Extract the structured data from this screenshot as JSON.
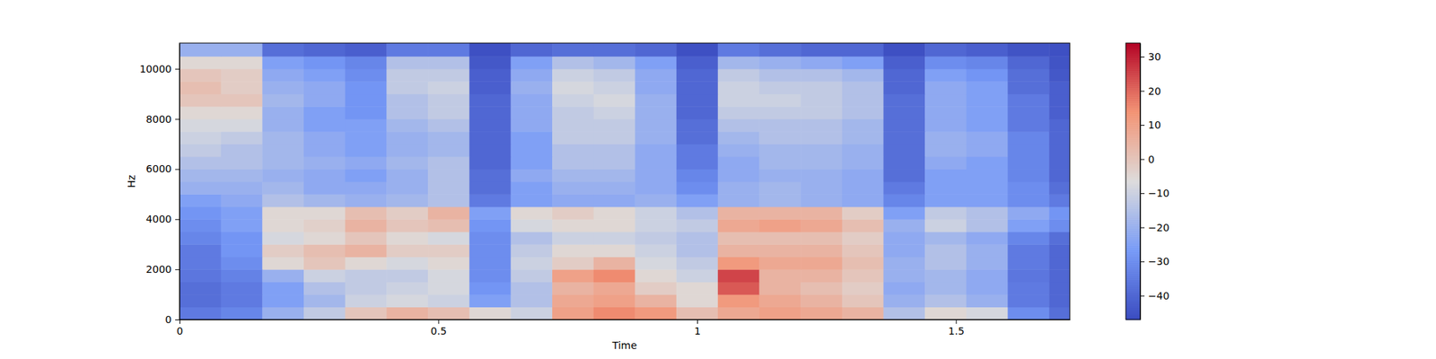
{
  "chart_data": {
    "type": "heatmap",
    "xlabel": "Time",
    "ylabel": "Hz",
    "xlim": [
      0,
      1.72
    ],
    "ylim": [
      0,
      11025
    ],
    "xticks": [
      0,
      0.5,
      1,
      1.5
    ],
    "yticks": [
      0,
      2000,
      4000,
      6000,
      8000,
      10000
    ],
    "x_bins": [
      0,
      0.08,
      0.16,
      0.24,
      0.32,
      0.4,
      0.48,
      0.56,
      0.64,
      0.72,
      0.8,
      0.88,
      0.96,
      1.04,
      1.12,
      1.2,
      1.28,
      1.36,
      1.44,
      1.52,
      1.6,
      1.68,
      1.72
    ],
    "y_bins": [
      0,
      500,
      1000,
      1500,
      2000,
      2500,
      3000,
      3500,
      4000,
      4500,
      5000,
      5500,
      6000,
      6500,
      7000,
      7500,
      8000,
      8500,
      9000,
      9500,
      10000,
      10500,
      11025
    ],
    "cells": [
      [
        -35,
        -32,
        -20,
        -12,
        0,
        5,
        2,
        -5,
        -10,
        10,
        15,
        12,
        2,
        8,
        10,
        8,
        5,
        -15,
        -5,
        -8,
        -30,
        -38
      ],
      [
        -38,
        -35,
        -25,
        -18,
        -10,
        -8,
        -10,
        -25,
        -15,
        8,
        10,
        5,
        -5,
        12,
        8,
        5,
        0,
        -20,
        -15,
        -20,
        -35,
        -40
      ],
      [
        -38,
        -35,
        -25,
        -15,
        -12,
        -10,
        -8,
        -28,
        -15,
        5,
        8,
        -2,
        -5,
        22,
        5,
        2,
        -2,
        -22,
        -18,
        -22,
        -35,
        -40
      ],
      [
        -36,
        -33,
        -20,
        -10,
        -12,
        -12,
        -8,
        -30,
        -12,
        10,
        15,
        -5,
        -10,
        25,
        5,
        5,
        0,
        -20,
        -18,
        -22,
        -36,
        -40
      ],
      [
        -35,
        -30,
        -5,
        0,
        -5,
        -8,
        -5,
        -30,
        -10,
        -2,
        5,
        -8,
        -12,
        12,
        8,
        8,
        2,
        -20,
        -15,
        -20,
        -35,
        -40
      ],
      [
        -35,
        -28,
        -2,
        2,
        5,
        -2,
        -2,
        -30,
        -12,
        -5,
        -5,
        -10,
        -15,
        5,
        5,
        5,
        0,
        -22,
        -15,
        -20,
        -35,
        -40
      ],
      [
        -32,
        -28,
        -8,
        -5,
        0,
        -5,
        -8,
        -30,
        -15,
        -10,
        -10,
        -12,
        -15,
        2,
        2,
        2,
        -2,
        -22,
        -18,
        -22,
        -32,
        -38
      ],
      [
        -30,
        -25,
        -5,
        -3,
        5,
        0,
        2,
        -28,
        -8,
        -5,
        -5,
        -10,
        -12,
        8,
        10,
        8,
        2,
        -20,
        -10,
        -15,
        -25,
        -30
      ],
      [
        -28,
        -25,
        -5,
        -5,
        2,
        -2,
        5,
        -25,
        -5,
        -2,
        -5,
        -10,
        -15,
        5,
        5,
        5,
        -2,
        -25,
        -12,
        -15,
        -22,
        -28
      ],
      [
        -25,
        -22,
        -15,
        -18,
        -20,
        -18,
        -15,
        -35,
        -25,
        -22,
        -22,
        -20,
        -25,
        -20,
        -18,
        -20,
        -22,
        -32,
        -25,
        -25,
        -30,
        -35
      ],
      [
        -20,
        -20,
        -18,
        -22,
        -22,
        -20,
        -15,
        -38,
        -25,
        -20,
        -20,
        -22,
        -30,
        -20,
        -18,
        -20,
        -22,
        -35,
        -25,
        -25,
        -30,
        -38
      ],
      [
        -18,
        -18,
        -20,
        -22,
        -25,
        -20,
        -15,
        -38,
        -22,
        -18,
        -18,
        -22,
        -32,
        -22,
        -20,
        -20,
        -22,
        -38,
        -25,
        -25,
        -32,
        -40
      ],
      [
        -15,
        -15,
        -18,
        -20,
        -22,
        -18,
        -15,
        -40,
        -25,
        -15,
        -15,
        -22,
        -35,
        -22,
        -18,
        -18,
        -20,
        -38,
        -22,
        -25,
        -32,
        -40
      ],
      [
        -12,
        -15,
        -18,
        -22,
        -25,
        -20,
        -18,
        -40,
        -25,
        -15,
        -15,
        -22,
        -35,
        -20,
        -18,
        -18,
        -20,
        -38,
        -20,
        -22,
        -32,
        -40
      ],
      [
        -10,
        -12,
        -18,
        -22,
        -25,
        -20,
        -18,
        -40,
        -25,
        -12,
        -12,
        -20,
        -38,
        -18,
        -15,
        -15,
        -18,
        -38,
        -20,
        -22,
        -32,
        -40
      ],
      [
        -8,
        -8,
        -20,
        -25,
        -25,
        -18,
        -15,
        -40,
        -22,
        -12,
        -12,
        -20,
        -38,
        -15,
        -15,
        -15,
        -18,
        -38,
        -22,
        -25,
        -35,
        -40
      ],
      [
        -5,
        -5,
        -20,
        -25,
        -28,
        -15,
        -12,
        -40,
        -22,
        -12,
        -10,
        -20,
        -40,
        -12,
        -12,
        -12,
        -15,
        -38,
        -22,
        -25,
        -35,
        -42
      ],
      [
        0,
        0,
        -18,
        -22,
        -28,
        -15,
        -12,
        -40,
        -22,
        -10,
        -8,
        -20,
        -40,
        -10,
        -10,
        -12,
        -15,
        -38,
        -22,
        -25,
        -35,
        -42
      ],
      [
        2,
        -2,
        -20,
        -22,
        -28,
        -12,
        -10,
        -42,
        -20,
        -8,
        -10,
        -22,
        -40,
        -10,
        -12,
        -12,
        -15,
        -40,
        -22,
        -25,
        -38,
        -42
      ],
      [
        0,
        -2,
        -22,
        -25,
        -30,
        -12,
        -12,
        -42,
        -22,
        -10,
        -12,
        -22,
        -40,
        -12,
        -15,
        -15,
        -18,
        -40,
        -25,
        -28,
        -38,
        -44
      ],
      [
        -5,
        -5,
        -25,
        -28,
        -32,
        -15,
        -15,
        -44,
        -25,
        -15,
        -18,
        -25,
        -42,
        -18,
        -20,
        -22,
        -25,
        -42,
        -30,
        -32,
        -40,
        -45
      ],
      [
        -20,
        -20,
        -38,
        -40,
        -42,
        -35,
        -35,
        -46,
        -40,
        -38,
        -38,
        -40,
        -46,
        -35,
        -38,
        -40,
        -40,
        -46,
        -40,
        -42,
        -45,
        -46
      ]
    ],
    "colorbar": {
      "range": [
        -47,
        34
      ],
      "ticks": [
        {
          "value": -40,
          "label": "−40"
        },
        {
          "value": -30,
          "label": "−30"
        },
        {
          "value": -20,
          "label": "−20"
        },
        {
          "value": -10,
          "label": "−10"
        },
        0,
        10,
        20,
        30
      ]
    }
  }
}
